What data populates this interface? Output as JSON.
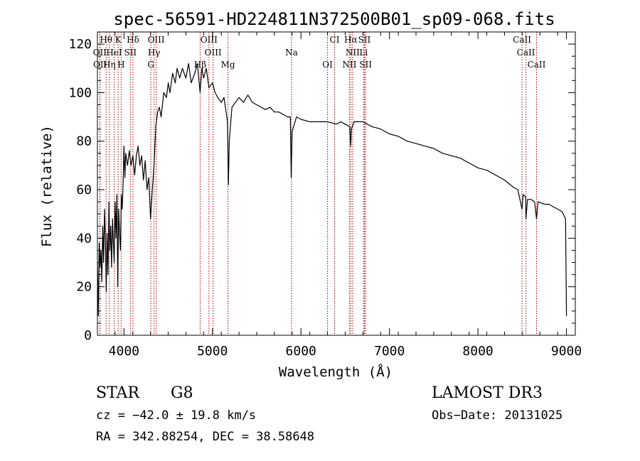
{
  "chart_data": {
    "type": "line",
    "title": "spec-56591-HD224811N372500B01_sp09-068.fits",
    "xlabel": "Wavelength (Å)",
    "ylabel": "Flux (relative)",
    "xlim": [
      3700,
      9100
    ],
    "ylim": [
      0,
      125
    ],
    "xticks": [
      4000,
      5000,
      6000,
      7000,
      8000,
      9000
    ],
    "yticks": [
      0,
      20,
      40,
      60,
      80,
      100,
      120
    ],
    "grid": false,
    "series": [
      {
        "points": [
          [
            3700,
            30
          ],
          [
            3710,
            8
          ],
          [
            3720,
            38
          ],
          [
            3730,
            28
          ],
          [
            3740,
            35
          ],
          [
            3750,
            22
          ],
          [
            3760,
            45
          ],
          [
            3770,
            30
          ],
          [
            3780,
            52
          ],
          [
            3790,
            40
          ],
          [
            3800,
            18
          ],
          [
            3810,
            42
          ],
          [
            3820,
            25
          ],
          [
            3830,
            55
          ],
          [
            3840,
            35
          ],
          [
            3850,
            45
          ],
          [
            3860,
            28
          ],
          [
            3870,
            48
          ],
          [
            3880,
            38
          ],
          [
            3890,
            30
          ],
          [
            3900,
            55
          ],
          [
            3910,
            40
          ],
          [
            3920,
            58
          ],
          [
            3930,
            20
          ],
          [
            3940,
            52
          ],
          [
            3950,
            42
          ],
          [
            3960,
            35
          ],
          [
            3970,
            58
          ],
          [
            3980,
            52
          ],
          [
            3990,
            62
          ],
          [
            4000,
            78
          ],
          [
            4010,
            65
          ],
          [
            4020,
            75
          ],
          [
            4040,
            70
          ],
          [
            4060,
            76
          ],
          [
            4080,
            70
          ],
          [
            4100,
            74
          ],
          [
            4120,
            66
          ],
          [
            4140,
            74
          ],
          [
            4160,
            78
          ],
          [
            4180,
            70
          ],
          [
            4200,
            74
          ],
          [
            4220,
            64
          ],
          [
            4240,
            72
          ],
          [
            4260,
            60
          ],
          [
            4280,
            65
          ],
          [
            4300,
            48
          ],
          [
            4320,
            60
          ],
          [
            4340,
            70
          ],
          [
            4360,
            86
          ],
          [
            4380,
            92
          ],
          [
            4400,
            94
          ],
          [
            4420,
            90
          ],
          [
            4450,
            100
          ],
          [
            4480,
            98
          ],
          [
            4500,
            104
          ],
          [
            4520,
            100
          ],
          [
            4550,
            108
          ],
          [
            4580,
            104
          ],
          [
            4600,
            110
          ],
          [
            4630,
            106
          ],
          [
            4660,
            110
          ],
          [
            4700,
            106
          ],
          [
            4730,
            112
          ],
          [
            4760,
            104
          ],
          [
            4800,
            108
          ],
          [
            4830,
            112
          ],
          [
            4860,
            100
          ],
          [
            4880,
            110
          ],
          [
            4900,
            106
          ],
          [
            4930,
            110
          ],
          [
            4960,
            102
          ],
          [
            5000,
            104
          ],
          [
            5030,
            100
          ],
          [
            5060,
            98
          ],
          [
            5100,
            96
          ],
          [
            5130,
            98
          ],
          [
            5170,
            88
          ],
          [
            5180,
            62
          ],
          [
            5190,
            80
          ],
          [
            5220,
            94
          ],
          [
            5260,
            96
          ],
          [
            5300,
            98
          ],
          [
            5350,
            96
          ],
          [
            5400,
            99
          ],
          [
            5450,
            96
          ],
          [
            5500,
            95
          ],
          [
            5550,
            94
          ],
          [
            5600,
            93
          ],
          [
            5650,
            94
          ],
          [
            5700,
            92
          ],
          [
            5750,
            92
          ],
          [
            5800,
            91
          ],
          [
            5850,
            90
          ],
          [
            5880,
            90
          ],
          [
            5890,
            65
          ],
          [
            5900,
            84
          ],
          [
            5950,
            90
          ],
          [
            6000,
            89
          ],
          [
            6100,
            88
          ],
          [
            6200,
            88
          ],
          [
            6300,
            88
          ],
          [
            6400,
            87
          ],
          [
            6450,
            88
          ],
          [
            6500,
            87
          ],
          [
            6550,
            86
          ],
          [
            6562,
            78
          ],
          [
            6570,
            85
          ],
          [
            6600,
            88
          ],
          [
            6700,
            88
          ],
          [
            6800,
            86
          ],
          [
            6900,
            85
          ],
          [
            7000,
            83
          ],
          [
            7100,
            82
          ],
          [
            7200,
            80
          ],
          [
            7300,
            79
          ],
          [
            7400,
            78
          ],
          [
            7500,
            77
          ],
          [
            7600,
            75
          ],
          [
            7700,
            74
          ],
          [
            7800,
            73
          ],
          [
            7900,
            71
          ],
          [
            8000,
            69
          ],
          [
            8100,
            68
          ],
          [
            8200,
            66
          ],
          [
            8300,
            64
          ],
          [
            8400,
            61
          ],
          [
            8450,
            60
          ],
          [
            8498,
            52
          ],
          [
            8510,
            58
          ],
          [
            8540,
            57
          ],
          [
            8542,
            48
          ],
          [
            8560,
            56
          ],
          [
            8600,
            56
          ],
          [
            8640,
            55
          ],
          [
            8662,
            48
          ],
          [
            8680,
            55
          ],
          [
            8750,
            54
          ],
          [
            8800,
            54
          ],
          [
            8850,
            53
          ],
          [
            8900,
            52
          ],
          [
            8950,
            51
          ],
          [
            8990,
            48
          ],
          [
            9000,
            8
          ]
        ]
      }
    ],
    "line_color": "#000000",
    "marker_color": "#aa0000",
    "spectral_lines": [
      {
        "label": "Hθ",
        "x": 3798,
        "row": 1
      },
      {
        "label": "K",
        "x": 3934,
        "row": 1
      },
      {
        "label": "Hδ",
        "x": 4102,
        "row": 1
      },
      {
        "label": "OIII",
        "x": 4364,
        "row": 1
      },
      {
        "label": "OIII",
        "x": 4960,
        "row": 1
      },
      {
        "label": "CI",
        "x": 6380,
        "row": 1
      },
      {
        "label": "Hα",
        "x": 6563,
        "row": 1
      },
      {
        "label": "SII",
        "x": 6717,
        "row": 1
      },
      {
        "label": "CaII",
        "x": 8498,
        "row": 1
      },
      {
        "label": "OII",
        "x": 3727,
        "row": 2
      },
      {
        "label": "HeI",
        "x": 3889,
        "row": 2
      },
      {
        "label": "SII",
        "x": 4072,
        "row": 2
      },
      {
        "label": "Hγ",
        "x": 4340,
        "row": 2
      },
      {
        "label": "OIII",
        "x": 5007,
        "row": 2
      },
      {
        "label": "Na",
        "x": 5893,
        "row": 2
      },
      {
        "label": "NII",
        "x": 6584,
        "row": 2
      },
      {
        "label": "Li",
        "x": 6708,
        "row": 2
      },
      {
        "label": "CaII",
        "x": 8542,
        "row": 2
      },
      {
        "label": "OII",
        "x": 3729,
        "row": 3
      },
      {
        "label": "Hη",
        "x": 3835,
        "row": 3
      },
      {
        "label": "H",
        "x": 3968,
        "row": 3
      },
      {
        "label": "G",
        "x": 4304,
        "row": 3
      },
      {
        "label": "Hβ",
        "x": 4861,
        "row": 3
      },
      {
        "label": "Mg",
        "x": 5175,
        "row": 3
      },
      {
        "label": "OI",
        "x": 6300,
        "row": 3
      },
      {
        "label": "NII",
        "x": 6548,
        "row": 3
      },
      {
        "label": "SII",
        "x": 6731,
        "row": 3
      },
      {
        "label": "CaII",
        "x": 8662,
        "row": 3
      }
    ]
  },
  "info": {
    "object_class": "STAR",
    "subclass": "G8",
    "survey": "LAMOST DR3",
    "cz": "cz = −42.0 ± 19.8 km/s",
    "obs_date": "Obs−Date: 20131025",
    "coords": "RA = 342.88254, DEC =  38.58648"
  }
}
